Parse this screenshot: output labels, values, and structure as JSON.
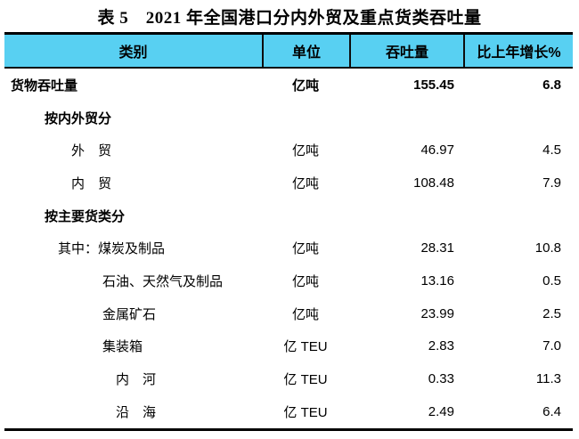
{
  "title": "表 5　2021 年全国港口分内外贸及重点货类吞吐量",
  "colors": {
    "header_bg": "#58D0F2",
    "border": "#000000",
    "divider": "#0d0d0d"
  },
  "table": {
    "headers": [
      "类别",
      "单位",
      "吞吐量",
      "比上年增长%"
    ],
    "rows": [
      {
        "label": "货物吞吐量",
        "unit": "亿吨",
        "value": "155.45",
        "growth": "6.8",
        "bold": true,
        "indent": 0
      },
      {
        "label": "按内外贸分",
        "unit": "",
        "value": "",
        "growth": "",
        "bold": true,
        "indent": 1
      },
      {
        "label": "外　贸",
        "unit": "亿吨",
        "value": "46.97",
        "growth": "4.5",
        "bold": false,
        "indent": 3
      },
      {
        "label": "内　贸",
        "unit": "亿吨",
        "value": "108.48",
        "growth": "7.9",
        "bold": false,
        "indent": 3
      },
      {
        "label": "按主要货类分",
        "unit": "",
        "value": "",
        "growth": "",
        "bold": true,
        "indent": 1
      },
      {
        "label": "其中：煤炭及制品",
        "unit": "亿吨",
        "value": "28.31",
        "growth": "10.8",
        "bold": false,
        "indent": 2
      },
      {
        "label": "石油、天然气及制品",
        "unit": "亿吨",
        "value": "13.16",
        "growth": "0.5",
        "bold": false,
        "indent": 4
      },
      {
        "label": "金属矿石",
        "unit": "亿吨",
        "value": "23.99",
        "growth": "2.5",
        "bold": false,
        "indent": 4
      },
      {
        "label": "集装箱",
        "unit": "亿 TEU",
        "value": "2.83",
        "growth": "7.0",
        "bold": false,
        "indent": 4
      },
      {
        "label": "内　河",
        "unit": "亿 TEU",
        "value": "0.33",
        "growth": "11.3",
        "bold": false,
        "indent": 5
      },
      {
        "label": "沿　海",
        "unit": "亿 TEU",
        "value": "2.49",
        "growth": "6.4",
        "bold": false,
        "indent": 5
      }
    ]
  }
}
